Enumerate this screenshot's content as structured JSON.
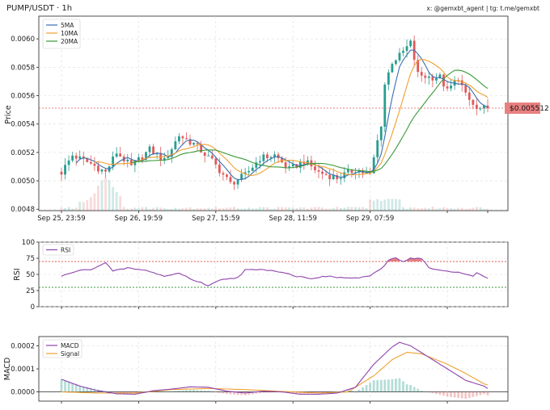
{
  "header": {
    "title": "PUMP/USDT · 1h",
    "credit": "x: @gemxbt_agent | tg: t.me/gemxbt"
  },
  "colors": {
    "up": "#2a9d8f",
    "down": "#e05a5a",
    "ma5": "#3a6fb0",
    "ma10": "#f0a030",
    "ma20": "#3a9a3a",
    "rsi": "#8e44ad",
    "macd": "#8e44ad",
    "signal": "#f0a030",
    "overbought": "#e05a5a",
    "oversold": "#3a9a3a"
  },
  "price_tag": "$0.005512",
  "chart_data": [
    {
      "type": "candlestick",
      "panel": "price",
      "ylabel": "Price",
      "ylim": [
        0.00479,
        0.00616
      ],
      "yticks": [
        "0.0048",
        "0.0050",
        "0.0052",
        "0.0054",
        "0.0056",
        "0.0058",
        "0.0060"
      ],
      "xticks": [
        "Sep 25, 23:59",
        "Sep 26, 19:59",
        "Sep 27, 15:59",
        "Sep 28, 11:59",
        "Sep 29, 07:59"
      ],
      "last_price": 0.005512,
      "candles_count": 117,
      "legend": [
        "5MA",
        "10MA",
        "20MA"
      ],
      "close_path": [
        [
          0,
          0.00506
        ],
        [
          3,
          0.00518
        ],
        [
          8,
          0.00512
        ],
        [
          12,
          0.00506
        ],
        [
          15,
          0.0052
        ],
        [
          19,
          0.0051
        ],
        [
          24,
          0.00522
        ],
        [
          28,
          0.00514
        ],
        [
          32,
          0.00532
        ],
        [
          36,
          0.00526
        ],
        [
          41,
          0.00514
        ],
        [
          46,
          0.00498
        ],
        [
          50,
          0.00504
        ],
        [
          54,
          0.00516
        ],
        [
          58,
          0.00518
        ],
        [
          62,
          0.00508
        ],
        [
          66,
          0.00514
        ],
        [
          70,
          0.00506
        ],
        [
          75,
          0.00502
        ],
        [
          80,
          0.00508
        ],
        [
          84,
          0.00504
        ],
        [
          87,
          0.0054
        ],
        [
          88,
          0.00568
        ],
        [
          90,
          0.00584
        ],
        [
          92,
          0.00588
        ],
        [
          95,
          0.00597
        ],
        [
          97,
          0.00575
        ],
        [
          100,
          0.00573
        ],
        [
          103,
          0.00573
        ],
        [
          105,
          0.00563
        ],
        [
          108,
          0.00573
        ],
        [
          110,
          0.0056
        ],
        [
          113,
          0.0055
        ],
        [
          116,
          0.00551
        ]
      ]
    },
    {
      "type": "line",
      "panel": "rsi",
      "ylabel": "RSI",
      "ylim": [
        0,
        100
      ],
      "yticks": [
        "0",
        "25",
        "50",
        "75",
        "100"
      ],
      "legend": [
        "RSI"
      ],
      "levels": [
        70,
        30
      ],
      "path": [
        [
          0,
          47
        ],
        [
          4,
          55
        ],
        [
          8,
          58
        ],
        [
          12,
          68
        ],
        [
          14,
          55
        ],
        [
          18,
          60
        ],
        [
          24,
          55
        ],
        [
          28,
          47
        ],
        [
          32,
          52
        ],
        [
          36,
          41
        ],
        [
          40,
          33
        ],
        [
          44,
          43
        ],
        [
          48,
          45
        ],
        [
          50,
          57
        ],
        [
          56,
          57
        ],
        [
          60,
          54
        ],
        [
          64,
          47
        ],
        [
          68,
          44
        ],
        [
          72,
          47
        ],
        [
          76,
          45
        ],
        [
          80,
          44
        ],
        [
          84,
          48
        ],
        [
          87,
          58
        ],
        [
          89,
          72
        ],
        [
          91,
          76
        ],
        [
          93,
          70
        ],
        [
          95,
          75
        ],
        [
          98,
          75
        ],
        [
          100,
          60
        ],
        [
          104,
          55
        ],
        [
          108,
          53
        ],
        [
          112,
          48
        ],
        [
          113,
          52
        ],
        [
          116,
          45
        ]
      ]
    },
    {
      "type": "line",
      "panel": "macd",
      "ylabel": "MACD",
      "ylim": [
        -4e-05,
        0.00024
      ],
      "yticks": [
        "0.0000",
        "0.0001",
        "0.0002"
      ],
      "legend": [
        "MACD",
        "Signal"
      ],
      "macd_path": [
        [
          0,
          5.5e-05
        ],
        [
          5,
          2.5e-05
        ],
        [
          10,
          5e-06
        ],
        [
          15,
          -8e-06
        ],
        [
          20,
          -1e-05
        ],
        [
          25,
          5e-06
        ],
        [
          30,
          1.2e-05
        ],
        [
          35,
          2.2e-05
        ],
        [
          40,
          2e-05
        ],
        [
          45,
          3e-06
        ],
        [
          50,
          -5e-06
        ],
        [
          55,
          3e-06
        ],
        [
          60,
          0.0
        ],
        [
          65,
          -1e-05
        ],
        [
          70,
          -1e-05
        ],
        [
          75,
          -5e-06
        ],
        [
          80,
          2e-05
        ],
        [
          85,
          0.00012
        ],
        [
          90,
          0.000195
        ],
        [
          92,
          0.000215
        ],
        [
          95,
          0.0002
        ],
        [
          100,
          0.00015
        ],
        [
          105,
          0.0001
        ],
        [
          110,
          5e-05
        ],
        [
          115,
          2.5e-05
        ],
        [
          116,
          1.5e-05
        ]
      ],
      "signal_path": [
        [
          0,
          0.0
        ],
        [
          10,
          -5e-06
        ],
        [
          20,
          -5e-06
        ],
        [
          30,
          1e-05
        ],
        [
          40,
          1.5e-05
        ],
        [
          50,
          1e-05
        ],
        [
          60,
          2e-06
        ],
        [
          70,
          -5e-06
        ],
        [
          78,
          0.0
        ],
        [
          85,
          7e-05
        ],
        [
          90,
          0.00014
        ],
        [
          94,
          0.000172
        ],
        [
          98,
          0.000165
        ],
        [
          105,
          0.00012
        ],
        [
          110,
          8e-05
        ],
        [
          115,
          3.5e-05
        ],
        [
          116,
          3e-05
        ]
      ]
    }
  ]
}
